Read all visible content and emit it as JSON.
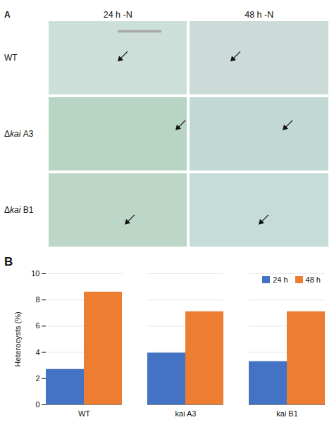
{
  "chart_data": [
    {
      "type": "image_grid",
      "title": "A",
      "categories": [
        "WT",
        "Δkai A3",
        "Δkai B1"
      ],
      "series": [
        {
          "name": "24 h -N",
          "colors": [
            "#ccdfd8",
            "#b8d4c4",
            "#bcd6c8"
          ]
        },
        {
          "name": "48 h -N",
          "colors": [
            "#ccdbd8",
            "#c2d8d4",
            "#c6dcd8"
          ]
        }
      ]
    },
    {
      "type": "bar",
      "title": "B",
      "categories": [
        "WT",
        "kai A3",
        "kai B1"
      ],
      "series": [
        {
          "name": "24 h",
          "color": "#4472C4",
          "values": [
            2.7,
            3.95,
            3.3
          ]
        },
        {
          "name": "48 h",
          "color": "#ED7D31",
          "values": [
            8.6,
            7.1,
            7.1
          ]
        }
      ],
      "ylabel": "Heterocysts (%)",
      "ylim": [
        0,
        10
      ],
      "yticks": [
        0,
        2,
        4,
        6,
        8,
        10
      ],
      "grid": true,
      "legend": "upper right"
    }
  ]
}
